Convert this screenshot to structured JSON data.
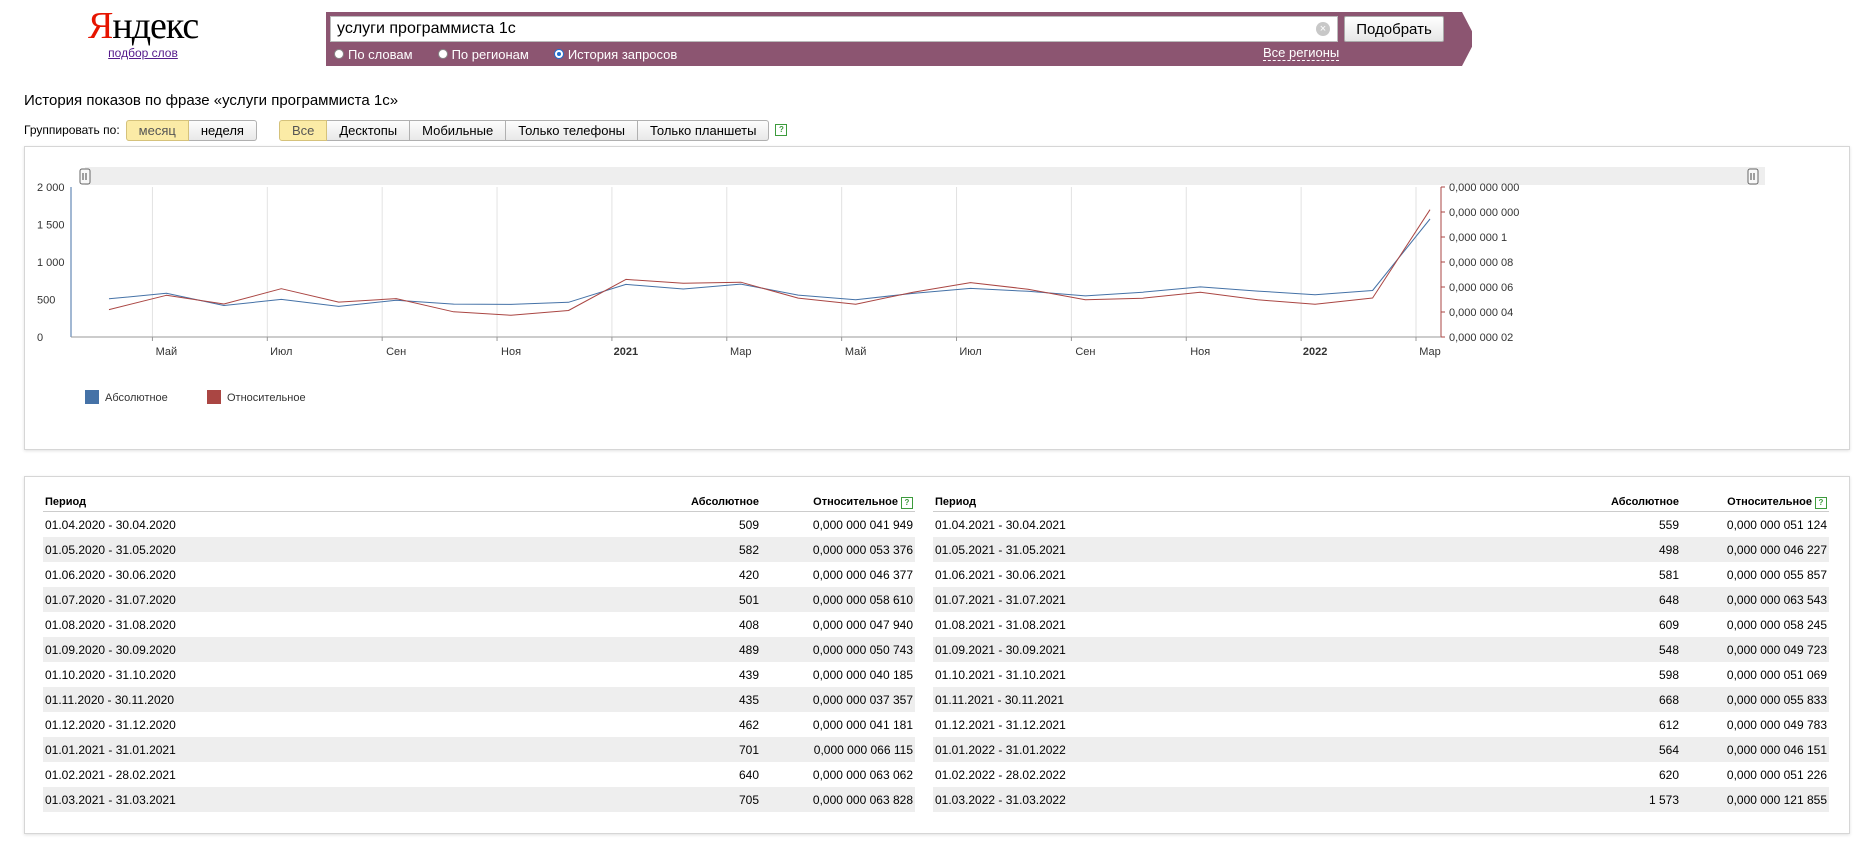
{
  "logo": {
    "brand_first": "Я",
    "brand_rest": "ндекс",
    "subtitle": "подбор слов"
  },
  "search": {
    "query": "услуги программиста 1с",
    "submit_label": "Подобрать",
    "modes": [
      {
        "label": "По словам",
        "selected": false
      },
      {
        "label": "По регионам",
        "selected": false
      },
      {
        "label": "История запросов",
        "selected": true
      }
    ],
    "regions_link": "Все регионы",
    "accent_color": "#8c5571"
  },
  "page_title": "История показов по фразе «услуги программиста 1с»",
  "grouping": {
    "label": "Группировать по:",
    "options": [
      "месяц",
      "неделя"
    ],
    "active": 0
  },
  "devices": {
    "options": [
      "Все",
      "Десктопы",
      "Мобильные",
      "Только телефоны",
      "Только планшеты"
    ],
    "active": 0
  },
  "chart_data": {
    "type": "line",
    "x": [
      "2020-04",
      "2020-05",
      "2020-06",
      "2020-07",
      "2020-08",
      "2020-09",
      "2020-10",
      "2020-11",
      "2020-12",
      "2021-01",
      "2021-02",
      "2021-03",
      "2021-04",
      "2021-05",
      "2021-06",
      "2021-07",
      "2021-08",
      "2021-09",
      "2021-10",
      "2021-11",
      "2021-12",
      "2022-01",
      "2022-02",
      "2022-03"
    ],
    "series": [
      {
        "name": "Абсолютное",
        "color": "#4572a7",
        "axis": "left",
        "values": [
          509,
          582,
          420,
          501,
          408,
          489,
          439,
          435,
          462,
          701,
          640,
          705,
          559,
          498,
          581,
          648,
          609,
          548,
          598,
          668,
          612,
          564,
          620,
          1573
        ]
      },
      {
        "name": "Относительное",
        "color": "#aa4643",
        "axis": "right",
        "values": [
          4.1949e-08,
          5.3376e-08,
          4.6377e-08,
          5.861e-08,
          4.794e-08,
          5.0743e-08,
          4.0185e-08,
          3.7357e-08,
          4.1181e-08,
          6.6115e-08,
          6.3062e-08,
          6.3828e-08,
          5.1124e-08,
          4.6227e-08,
          5.5857e-08,
          6.3543e-08,
          5.8245e-08,
          4.9723e-08,
          5.1069e-08,
          5.5833e-08,
          4.9783e-08,
          4.6151e-08,
          5.1226e-08,
          1.21855e-07
        ]
      }
    ],
    "y_left": {
      "ylim": [
        0,
        2000
      ],
      "ticks": [
        "0",
        "500",
        "1 000",
        "1 500",
        "2 000"
      ]
    },
    "y_right": {
      "ylim": [
        2e-08,
        1.4e-07
      ],
      "ticks": [
        "0,000 000 02",
        "0,000 000 04",
        "0,000 000 06",
        "0,000 000 08",
        "0,000 000 1",
        "0,000 000 000",
        "0,000 000 000"
      ]
    },
    "x_ticks": [
      {
        "label": "Май",
        "date": "2020-05",
        "bold": false
      },
      {
        "label": "Июл",
        "date": "2020-07",
        "bold": false
      },
      {
        "label": "Сен",
        "date": "2020-09",
        "bold": false
      },
      {
        "label": "Ноя",
        "date": "2020-11",
        "bold": false
      },
      {
        "label": "2021",
        "date": "2021-01",
        "bold": true
      },
      {
        "label": "Мар",
        "date": "2021-03",
        "bold": false
      },
      {
        "label": "Май",
        "date": "2021-05",
        "bold": false
      },
      {
        "label": "Июл",
        "date": "2021-07",
        "bold": false
      },
      {
        "label": "Сен",
        "date": "2021-09",
        "bold": false
      },
      {
        "label": "Ноя",
        "date": "2021-11",
        "bold": false
      },
      {
        "label": "2022",
        "date": "2022-01",
        "bold": true
      },
      {
        "label": "Мар",
        "date": "2022-03",
        "bold": false
      }
    ],
    "grid": true,
    "legend": "bottom-left"
  },
  "table": {
    "headers": {
      "period": "Период",
      "absolute": "Абсолютное",
      "relative": "Относительное"
    },
    "left": [
      {
        "period": "01.04.2020 - 30.04.2020",
        "abs": "509",
        "rel": "0,000 000 041 949"
      },
      {
        "period": "01.05.2020 - 31.05.2020",
        "abs": "582",
        "rel": "0,000 000 053 376"
      },
      {
        "period": "01.06.2020 - 30.06.2020",
        "abs": "420",
        "rel": "0,000 000 046 377"
      },
      {
        "period": "01.07.2020 - 31.07.2020",
        "abs": "501",
        "rel": "0,000 000 058 610"
      },
      {
        "period": "01.08.2020 - 31.08.2020",
        "abs": "408",
        "rel": "0,000 000 047 940"
      },
      {
        "period": "01.09.2020 - 30.09.2020",
        "abs": "489",
        "rel": "0,000 000 050 743"
      },
      {
        "period": "01.10.2020 - 31.10.2020",
        "abs": "439",
        "rel": "0,000 000 040 185"
      },
      {
        "period": "01.11.2020 - 30.11.2020",
        "abs": "435",
        "rel": "0,000 000 037 357"
      },
      {
        "period": "01.12.2020 - 31.12.2020",
        "abs": "462",
        "rel": "0,000 000 041 181"
      },
      {
        "period": "01.01.2021 - 31.01.2021",
        "abs": "701",
        "rel": "0,000 000 066 115"
      },
      {
        "period": "01.02.2021 - 28.02.2021",
        "abs": "640",
        "rel": "0,000 000 063 062"
      },
      {
        "period": "01.03.2021 - 31.03.2021",
        "abs": "705",
        "rel": "0,000 000 063 828"
      }
    ],
    "right": [
      {
        "period": "01.04.2021 - 30.04.2021",
        "abs": "559",
        "rel": "0,000 000 051 124"
      },
      {
        "period": "01.05.2021 - 31.05.2021",
        "abs": "498",
        "rel": "0,000 000 046 227"
      },
      {
        "period": "01.06.2021 - 30.06.2021",
        "abs": "581",
        "rel": "0,000 000 055 857"
      },
      {
        "period": "01.07.2021 - 31.07.2021",
        "abs": "648",
        "rel": "0,000 000 063 543"
      },
      {
        "period": "01.08.2021 - 31.08.2021",
        "abs": "609",
        "rel": "0,000 000 058 245"
      },
      {
        "period": "01.09.2021 - 30.09.2021",
        "abs": "548",
        "rel": "0,000 000 049 723"
      },
      {
        "period": "01.10.2021 - 31.10.2021",
        "abs": "598",
        "rel": "0,000 000 051 069"
      },
      {
        "period": "01.11.2021 - 30.11.2021",
        "abs": "668",
        "rel": "0,000 000 055 833"
      },
      {
        "period": "01.12.2021 - 31.12.2021",
        "abs": "612",
        "rel": "0,000 000 049 783"
      },
      {
        "period": "01.01.2022 - 31.01.2022",
        "abs": "564",
        "rel": "0,000 000 046 151"
      },
      {
        "period": "01.02.2022 - 28.02.2022",
        "abs": "620",
        "rel": "0,000 000 051 226"
      },
      {
        "period": "01.03.2022 - 31.03.2022",
        "abs": "1 573",
        "rel": "0,000 000 121 855"
      }
    ]
  }
}
